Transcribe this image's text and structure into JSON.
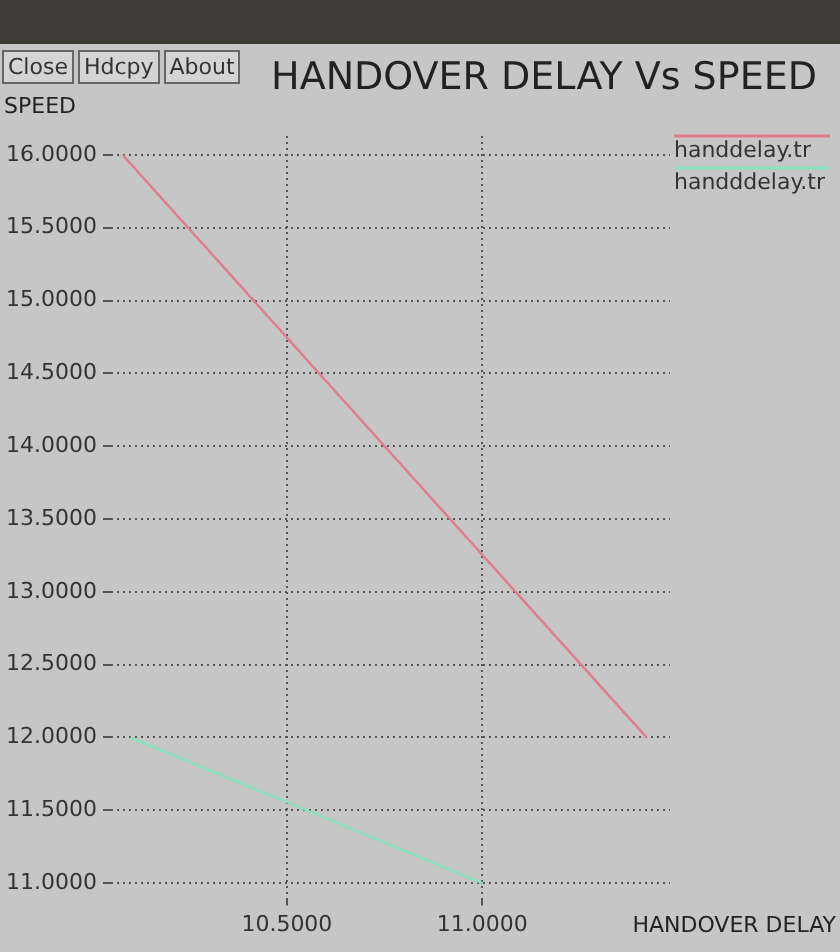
{
  "chart_data": {
    "type": "line",
    "title": "HANDOVER DELAY Vs SPEED",
    "xlabel": "HANDOVER DELAY",
    "ylabel": "SPEED",
    "annotations": [
      "Close",
      "Hdcpy",
      "About"
    ],
    "series": [
      {
        "name": "handdelay.tr",
        "color": "#e07c8c",
        "x": [
          10.08,
          11.42
        ],
        "values": [
          16,
          12
        ]
      },
      {
        "name": "handddelay.tr",
        "color": "#86e3bc",
        "x": [
          10.1,
          11.0
        ],
        "values": [
          12,
          11
        ]
      }
    ],
    "xlim": [
      10.05,
      11.48
    ],
    "ylim": [
      10.9,
      16.13
    ],
    "xticks": [
      {
        "value": 10.5,
        "label": "10.5000"
      },
      {
        "value": 11,
        "label": "11.0000"
      }
    ],
    "yticks": [
      {
        "value": 11,
        "label": "11.0000"
      },
      {
        "value": 11.5,
        "label": "11.5000"
      },
      {
        "value": 12,
        "label": "12.0000"
      },
      {
        "value": 12.5,
        "label": "12.5000"
      },
      {
        "value": 13,
        "label": "13.0000"
      },
      {
        "value": 13.5,
        "label": "13.5000"
      },
      {
        "value": 14,
        "label": "14.0000"
      },
      {
        "value": 14.5,
        "label": "14.5000"
      },
      {
        "value": 15,
        "label": "15.0000"
      },
      {
        "value": 15.5,
        "label": "15.5000"
      },
      {
        "value": 16,
        "label": "16.0000"
      }
    ],
    "grid": true,
    "legend": "top right",
    "marker": "none",
    "line_style": "solid"
  }
}
